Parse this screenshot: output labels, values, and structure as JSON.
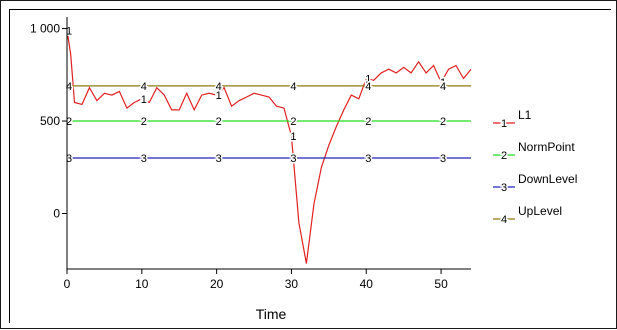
{
  "chart_data": {
    "type": "line",
    "xlabel": "Time",
    "ylabel": "",
    "title": "",
    "xlim": [
      0,
      54
    ],
    "ylim": [
      -300,
      1030
    ],
    "x_ticks": [
      0,
      10,
      20,
      30,
      40,
      50
    ],
    "x_tick_labels": [
      "0",
      "10",
      "20",
      "30",
      "40",
      "50"
    ],
    "y_ticks": [
      0,
      500,
      1000
    ],
    "y_tick_labels": [
      "0",
      "500",
      "1 000"
    ],
    "legend_position": "right",
    "series": [
      {
        "name": "L1",
        "marker": "1",
        "color": "#e02020",
        "x": [
          0,
          0.5,
          1,
          2,
          3,
          4,
          5,
          6,
          7,
          8,
          9,
          10,
          11,
          12,
          13,
          14,
          15,
          16,
          17,
          18,
          19,
          20,
          21,
          22,
          23,
          24,
          25,
          26,
          27,
          28,
          29,
          30,
          31,
          32,
          33,
          34,
          35,
          36,
          37,
          38,
          39,
          40,
          41,
          42,
          43,
          44,
          45,
          46,
          47,
          48,
          49,
          50,
          51,
          52,
          53,
          54
        ],
        "values": [
          990,
          860,
          600,
          590,
          680,
          610,
          650,
          640,
          660,
          570,
          600,
          620,
          600,
          680,
          640,
          560,
          560,
          650,
          560,
          640,
          650,
          640,
          680,
          580,
          610,
          630,
          650,
          640,
          630,
          580,
          570,
          420,
          -50,
          -270,
          50,
          250,
          370,
          470,
          560,
          640,
          620,
          730,
          720,
          760,
          780,
          760,
          790,
          760,
          820,
          760,
          800,
          710,
          780,
          800,
          730,
          780
        ]
      },
      {
        "name": "NormPoint",
        "marker": "2",
        "color": "#22dd22",
        "x": [
          0,
          54
        ],
        "values": [
          500,
          500
        ]
      },
      {
        "name": "DownLevel",
        "marker": "3",
        "color": "#2222bb",
        "x": [
          0,
          54
        ],
        "values": [
          300,
          300
        ]
      },
      {
        "name": "UpLevel",
        "marker": "4",
        "color": "#8c7a10",
        "x": [
          0,
          54
        ],
        "values": [
          690,
          690
        ]
      }
    ]
  }
}
